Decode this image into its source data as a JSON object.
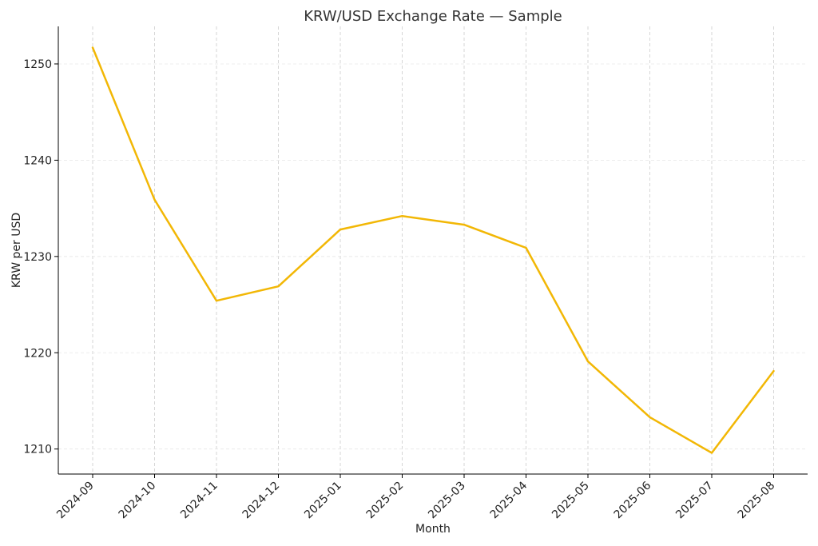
{
  "chart_data": {
    "type": "line",
    "title": "KRW/USD Exchange Rate — Sample",
    "xlabel": "Month",
    "ylabel": "KRW per USD",
    "x": [
      "2024-09",
      "2024-10",
      "2024-11",
      "2024-12",
      "2025-01",
      "2025-02",
      "2025-03",
      "2025-04",
      "2025-05",
      "2025-06",
      "2025-07",
      "2025-08"
    ],
    "series": [
      {
        "values": [
          1251.7,
          1235.9,
          1225.4,
          1226.9,
          1232.8,
          1234.2,
          1233.3,
          1230.9,
          1219.1,
          1213.3,
          1209.6,
          1218.1
        ],
        "color": "#f2b705"
      }
    ],
    "yticks": [
      1210,
      1220,
      1230,
      1240,
      1250
    ],
    "ylim": [
      1207.4,
      1253.9
    ],
    "grid": true
  }
}
